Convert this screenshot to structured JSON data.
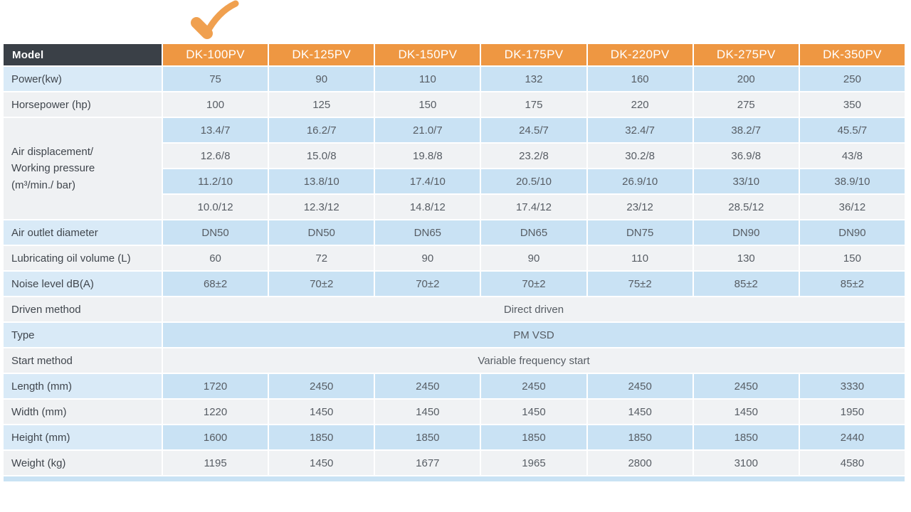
{
  "annotation": {
    "checkmark_icon": "check-icon",
    "checkmark_color": "#F0A04F"
  },
  "colors": {
    "header_orange": "#EE9742",
    "header_dark": "#3A4047",
    "row_blue": "#C9E2F4",
    "row_blue_label": "#D9EAF7",
    "row_light": "#F0F2F4",
    "value_text": "#575D64",
    "label_text": "#40464D"
  },
  "table": {
    "corner_label": "Model",
    "models": [
      "DK-100PV",
      "DK-125PV",
      "DK-150PV",
      "DK-175PV",
      "DK-220PV",
      "DK-275PV",
      "DK-350PV"
    ],
    "rows": [
      {
        "label": "Power(kw)",
        "values": [
          "75",
          "90",
          "110",
          "132",
          "160",
          "200",
          "250"
        ]
      },
      {
        "label": "Horsepower (hp)",
        "values": [
          "100",
          "125",
          "150",
          "175",
          "220",
          "275",
          "350"
        ]
      },
      {
        "label_lines": [
          "Air displacement/",
          "Working pressure",
          "(m³/min./ bar)"
        ],
        "sub_rows": [
          [
            "13.4/7",
            "16.2/7",
            "21.0/7",
            "24.5/7",
            "32.4/7",
            "38.2/7",
            "45.5/7"
          ],
          [
            "12.6/8",
            "15.0/8",
            "19.8/8",
            "23.2/8",
            "30.2/8",
            "36.9/8",
            "43/8"
          ],
          [
            "11.2/10",
            "13.8/10",
            "17.4/10",
            "20.5/10",
            "26.9/10",
            "33/10",
            "38.9/10"
          ],
          [
            "10.0/12",
            "12.3/12",
            "14.8/12",
            "17.4/12",
            "23/12",
            "28.5/12",
            "36/12"
          ]
        ]
      },
      {
        "label": "Air outlet diameter",
        "values": [
          "DN50",
          "DN50",
          "DN65",
          "DN65",
          "DN75",
          "DN90",
          "DN90"
        ]
      },
      {
        "label": "Lubricating oil volume (L)",
        "values": [
          "60",
          "72",
          "90",
          "90",
          "110",
          "130",
          "150"
        ]
      },
      {
        "label": "Noise level dB(A)",
        "values": [
          "68±2",
          "70±2",
          "70±2",
          "70±2",
          "75±2",
          "85±2",
          "85±2"
        ]
      },
      {
        "label": "Driven method",
        "span_value": "Direct driven"
      },
      {
        "label": "Type",
        "span_value": "PM VSD"
      },
      {
        "label": "Start method",
        "span_value": "Variable frequency start"
      },
      {
        "label": "Length (mm)",
        "values": [
          "1720",
          "2450",
          "2450",
          "2450",
          "2450",
          "2450",
          "3330"
        ]
      },
      {
        "label": "Width (mm)",
        "values": [
          "1220",
          "1450",
          "1450",
          "1450",
          "1450",
          "1450",
          "1950"
        ]
      },
      {
        "label": "Height (mm)",
        "values": [
          "1600",
          "1850",
          "1850",
          "1850",
          "1850",
          "1850",
          "2440"
        ]
      },
      {
        "label": "Weight (kg)",
        "values": [
          "1195",
          "1450",
          "1677",
          "1965",
          "2800",
          "3100",
          "4580"
        ]
      }
    ]
  }
}
